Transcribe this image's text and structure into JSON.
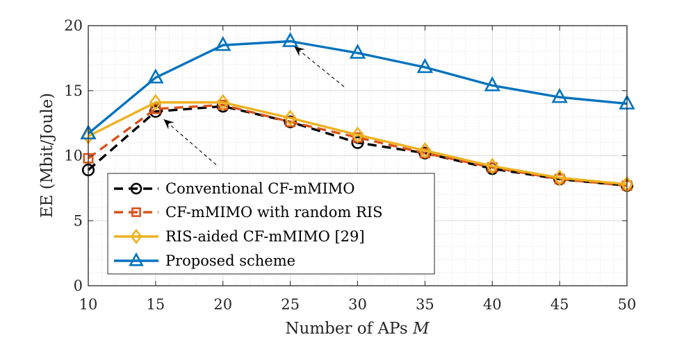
{
  "chart_data": {
    "type": "line",
    "title": "",
    "xlabel": "Number of APs",
    "xlabel_symbol": "M",
    "ylabel": "EE (Mbit/Joule)",
    "x": [
      10,
      15,
      20,
      25,
      30,
      35,
      40,
      45,
      50
    ],
    "xlim": [
      10,
      50
    ],
    "ylim": [
      0,
      20
    ],
    "xticks": [
      10,
      15,
      20,
      25,
      30,
      35,
      40,
      45,
      50
    ],
    "yticks": [
      0,
      5,
      10,
      15,
      20
    ],
    "grid": true,
    "legend_position": "bottom-left",
    "series": [
      {
        "name": "Conventional CF-mMIMO",
        "color": "#000000",
        "marker": "circle",
        "dashed": true,
        "values": [
          8.9,
          13.4,
          13.8,
          12.6,
          11.0,
          10.2,
          9.0,
          8.2,
          7.7
        ]
      },
      {
        "name": "CF-mMIMO with random RIS",
        "color": "#D95319",
        "marker": "square",
        "dashed": true,
        "values": [
          9.8,
          13.6,
          13.9,
          12.6,
          11.4,
          10.2,
          9.1,
          8.2,
          7.7
        ]
      },
      {
        "name": "RIS-aided CF-mMIMO [29]",
        "color": "#EDB120",
        "marker": "diamond",
        "dashed": false,
        "values": [
          11.5,
          14.1,
          14.1,
          12.9,
          11.6,
          10.4,
          9.2,
          8.3,
          7.8
        ]
      },
      {
        "name": "Proposed scheme",
        "color": "#0072BD",
        "marker": "triangle",
        "dashed": false,
        "values": [
          11.7,
          16.0,
          18.5,
          18.8,
          17.9,
          16.8,
          15.4,
          14.5,
          14.0
        ]
      }
    ],
    "annotations": [
      {
        "type": "arrow",
        "from": [
          29.0,
          15.3
        ],
        "to": [
          25.3,
          18.4
        ]
      },
      {
        "type": "arrow",
        "from": [
          19.5,
          9.3
        ],
        "to": [
          15.6,
          12.8
        ]
      }
    ]
  }
}
